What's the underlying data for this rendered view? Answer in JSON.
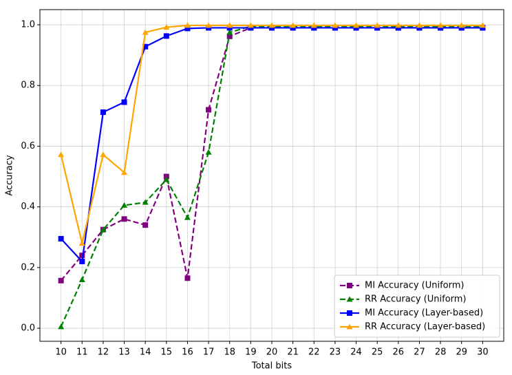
{
  "chart_data": {
    "type": "line",
    "xlabel": "Total bits",
    "ylabel": "Accuracy",
    "x": [
      10,
      11,
      12,
      13,
      14,
      15,
      16,
      17,
      18,
      19,
      20,
      21,
      22,
      23,
      24,
      25,
      26,
      27,
      28,
      29,
      30
    ],
    "xlim": [
      9,
      31
    ],
    "xticks": [
      10,
      11,
      12,
      13,
      14,
      15,
      16,
      17,
      18,
      19,
      20,
      21,
      22,
      23,
      24,
      25,
      26,
      27,
      28,
      29,
      30
    ],
    "ylim": [
      -0.043,
      1.05
    ],
    "yticks": [
      {
        "value": 0,
        "label": "0.0"
      },
      0.2,
      0.4,
      0.6,
      0.8,
      {
        "value": 1,
        "label": "1.0"
      }
    ],
    "grid": true,
    "legend": "lower right",
    "series": [
      {
        "name": "MI Accuracy (Uniform)",
        "color": "#800080",
        "linestyle": "dashed",
        "marker": "square",
        "values": [
          0.157,
          0.24,
          0.325,
          0.36,
          0.34,
          0.5,
          0.165,
          0.72,
          0.962,
          0.99,
          0.99,
          0.99,
          0.99,
          0.99,
          0.99,
          0.99,
          0.99,
          0.99,
          0.99,
          0.99,
          0.99
        ]
      },
      {
        "name": "RR Accuracy (Uniform)",
        "color": "#008000",
        "linestyle": "dashed",
        "marker": "triangle",
        "values": [
          0.005,
          0.16,
          0.325,
          0.405,
          0.415,
          0.49,
          0.365,
          0.58,
          0.975,
          0.995,
          0.995,
          0.995,
          0.995,
          0.995,
          0.995,
          0.995,
          0.995,
          0.995,
          0.995,
          0.995,
          0.995
        ]
      },
      {
        "name": "MI Accuracy (Layer-based)",
        "color": "#0000ff",
        "linestyle": "solid",
        "marker": "square",
        "values": [
          0.295,
          0.22,
          0.712,
          0.745,
          0.928,
          0.963,
          0.988,
          0.99,
          0.99,
          0.99,
          0.99,
          0.99,
          0.99,
          0.99,
          0.99,
          0.99,
          0.99,
          0.99,
          0.99,
          0.99,
          0.99
        ]
      },
      {
        "name": "RR Accuracy (Layer-based)",
        "color": "#ffa500",
        "linestyle": "solid",
        "marker": "triangle",
        "values": [
          0.572,
          0.28,
          0.572,
          0.513,
          0.975,
          0.992,
          0.998,
          0.998,
          0.998,
          0.998,
          0.998,
          0.998,
          0.998,
          0.998,
          0.998,
          0.998,
          0.998,
          0.998,
          0.998,
          0.998,
          0.998
        ]
      }
    ]
  }
}
